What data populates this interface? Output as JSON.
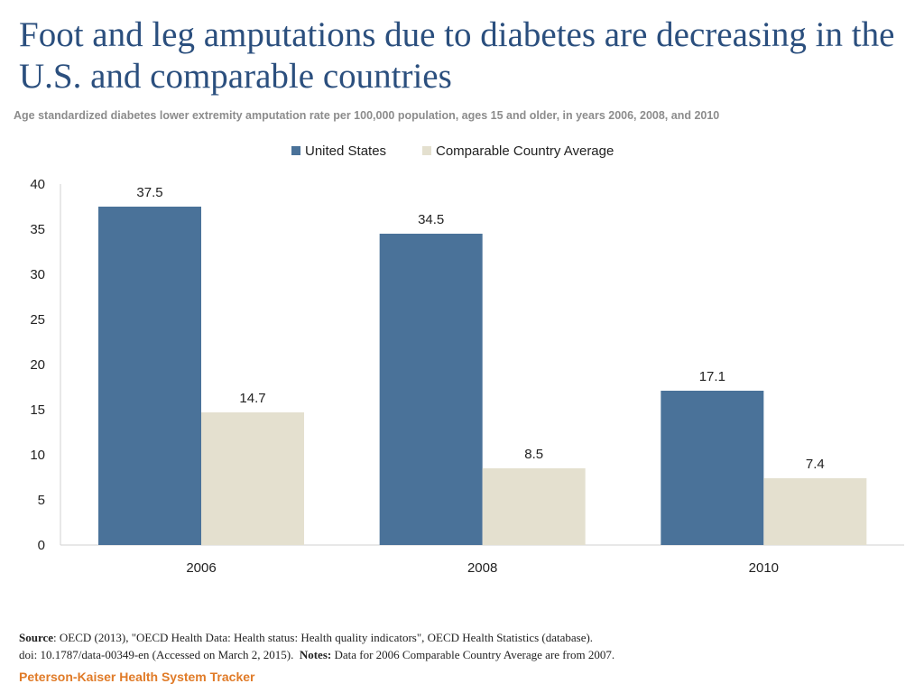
{
  "title": "Foot and leg amputations due to diabetes are decreasing in the U.S. and comparable countries",
  "subtitle": "Age standardized diabetes lower extremity amputation rate per 100,000 population, ages 15 and older, in years 2006, 2008, and 2010",
  "colors": {
    "us": "#4a7299",
    "comparable": "#e4e0cf",
    "axis": "#d0d0d0",
    "text": "#222222"
  },
  "chart_data": {
    "type": "bar",
    "title": "Foot and leg amputations due to diabetes are decreasing in the U.S. and comparable countries",
    "xlabel": "",
    "ylabel": "",
    "categories": [
      "2006",
      "2008",
      "2010"
    ],
    "series": [
      {
        "name": "United States",
        "values": [
          37.5,
          34.5,
          17.1
        ],
        "labels": [
          "37.5",
          "34.5",
          "17.1"
        ]
      },
      {
        "name": "Comparable Country Average",
        "values": [
          14.7,
          8.5,
          7.4
        ],
        "labels": [
          "14.7",
          "8.5",
          "7.4"
        ]
      }
    ],
    "ylim": [
      0,
      40
    ],
    "yticks": [
      0,
      5,
      10,
      15,
      20,
      25,
      30,
      35,
      40
    ],
    "grid": false,
    "legend": "top-center"
  },
  "footer": {
    "source_label": "Source",
    "source_text": ": OECD (2013), \"OECD Health Data: Health status: Health quality  indicators\", OECD Health Statistics (database).",
    "doi_text": "doi: 10.1787/data-00349-en (Accessed on March 2,  2015).",
    "notes_label": "Notes:",
    "notes_text": " Data for 2006 Comparable Country Average are from 2007.",
    "brand": "Peterson-Kaiser Health System Tracker"
  }
}
